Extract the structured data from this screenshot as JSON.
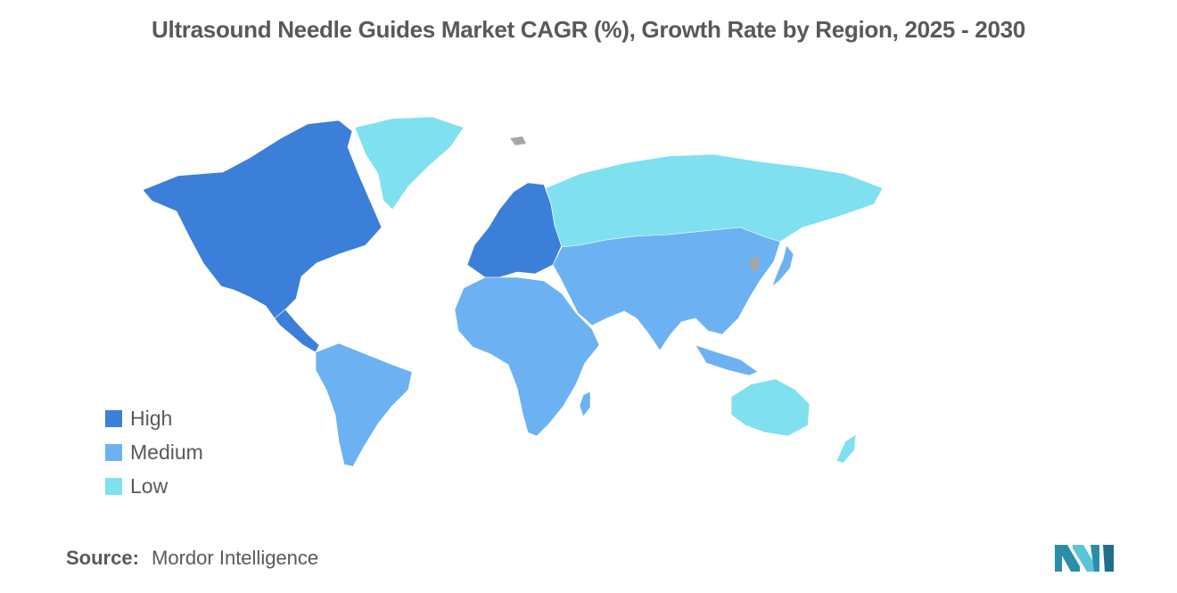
{
  "title": "Ultrasound Needle Guides Market CAGR (%), Growth Rate by Region, 2025 - 2030",
  "colors": {
    "high": "#3b7fd9",
    "medium": "#6cb2f2",
    "low": "#7fe0f0",
    "no_data": "#a6a6a6",
    "text": "#595959"
  },
  "legend": [
    {
      "label": "High",
      "color": "#3b7fd9"
    },
    {
      "label": "Medium",
      "color": "#6cb2f2"
    },
    {
      "label": "Low",
      "color": "#7fe0f0"
    }
  ],
  "regions": [
    {
      "name": "North America",
      "level": "High"
    },
    {
      "name": "Europe",
      "level": "High"
    },
    {
      "name": "South America",
      "level": "Medium"
    },
    {
      "name": "Africa",
      "level": "Medium"
    },
    {
      "name": "Middle East",
      "level": "Medium"
    },
    {
      "name": "Asia",
      "level": "Medium"
    },
    {
      "name": "Russia",
      "level": "Low"
    },
    {
      "name": "Greenland",
      "level": "Low"
    },
    {
      "name": "Australia",
      "level": "Low"
    },
    {
      "name": "New Zealand",
      "level": "Low"
    }
  ],
  "source": {
    "label": "Source:",
    "value": "Mordor Intelligence"
  },
  "logo_icon": "mordor-intelligence-logo"
}
